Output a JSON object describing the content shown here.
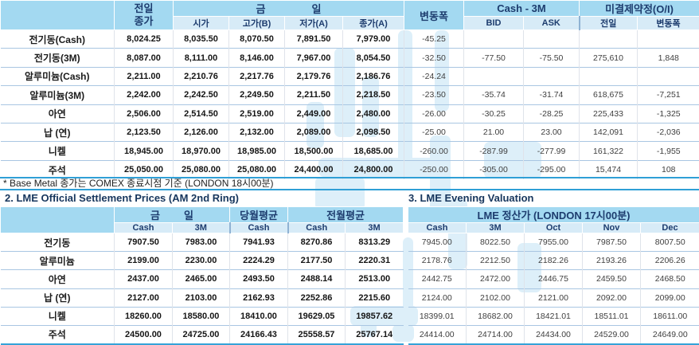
{
  "accent_colors": {
    "header_bright": "#a3d9f1",
    "header_light": "#d7ebf7",
    "line_blue": "#36a3d8",
    "title_navy": "#17365d"
  },
  "top_table": {
    "header": {
      "prev_close_line1": "전일",
      "prev_close_line2": "종가",
      "today_left": "금",
      "today_right": "일",
      "sub_cols": [
        "시가",
        "고가(B)",
        "저가(A)",
        "종가(A)"
      ],
      "change": "변동폭",
      "cash3m": "Cash - 3M",
      "cash3m_cols": [
        "BID",
        "ASK"
      ],
      "oi": "미결제약정(O/I)",
      "oi_cols": [
        "전일",
        "변동폭"
      ]
    },
    "rows": [
      {
        "label": "전기동(Cash)",
        "values": [
          "8,024.25",
          "8,035.50",
          "8,070.50",
          "7,891.50",
          "7,979.00",
          "-45.25",
          "",
          "",
          "",
          ""
        ]
      },
      {
        "label": "전기동(3M)",
        "values": [
          "8,087.00",
          "8,111.00",
          "8,146.00",
          "7,967.00",
          "8,054.50",
          "-32.50",
          "-77.50",
          "-75.50",
          "275,610",
          "1,848"
        ]
      },
      {
        "label": "알루미늄(Cash)",
        "values": [
          "2,211.00",
          "2,210.76",
          "2,217.76",
          "2,179.76",
          "2,186.76",
          "-24.24",
          "",
          "",
          "",
          ""
        ]
      },
      {
        "label": "알루미늄(3M)",
        "values": [
          "2,242.00",
          "2,242.50",
          "2,249.50",
          "2,211.50",
          "2,218.50",
          "-23.50",
          "-35.74",
          "-31.74",
          "618,675",
          "-7,251"
        ]
      },
      {
        "label": "아연",
        "values": [
          "2,506.00",
          "2,514.50",
          "2,519.00",
          "2,449.00",
          "2,480.00",
          "-26.00",
          "-30.25",
          "-28.25",
          "225,433",
          "-1,325"
        ]
      },
      {
        "label": "납 (연)",
        "values": [
          "2,123.50",
          "2,126.00",
          "2,132.00",
          "2,089.00",
          "2,098.50",
          "-25.00",
          "21.00",
          "23.00",
          "142,091",
          "-2,036"
        ]
      },
      {
        "label": "니켈",
        "values": [
          "18,945.00",
          "18,970.00",
          "18,985.00",
          "18,500.00",
          "18,685.00",
          "-260.00",
          "-287.99",
          "-277.99",
          "161,322",
          "-1,955"
        ]
      },
      {
        "label": "주석",
        "values": [
          "25,050.00",
          "25,080.00",
          "25,080.00",
          "24,400.00",
          "24,800.00",
          "-250.00",
          "-305.00",
          "-295.00",
          "15,474",
          "108"
        ]
      }
    ]
  },
  "footnote": "* Base Metal 종가는 COMEX 종료시점 기준 (LONDON 18시00분)",
  "section2": {
    "title": "2. LME Official Settlement Prices (AM 2nd Ring)",
    "group_today_left": "금",
    "group_today_right": "일",
    "group_month": "당월평균",
    "group_prev_month": "전월평균",
    "sub_headers": [
      "Cash",
      "3M",
      "Cash",
      "Cash",
      "3M"
    ],
    "rows": [
      {
        "label": "전기동",
        "values": [
          "7907.50",
          "7983.00",
          "7941.93",
          "8270.86",
          "8313.29"
        ]
      },
      {
        "label": "알루미늄",
        "values": [
          "2199.00",
          "2230.00",
          "2224.29",
          "2177.50",
          "2220.31"
        ]
      },
      {
        "label": "아연",
        "values": [
          "2437.00",
          "2465.00",
          "2493.50",
          "2488.14",
          "2513.00"
        ]
      },
      {
        "label": "납 (연)",
        "values": [
          "2127.00",
          "2103.00",
          "2162.93",
          "2252.86",
          "2215.60"
        ]
      },
      {
        "label": "니켈",
        "values": [
          "18260.00",
          "18580.00",
          "18410.00",
          "19629.05",
          "19857.62"
        ]
      },
      {
        "label": "주석",
        "values": [
          "24500.00",
          "24725.00",
          "24166.43",
          "25558.57",
          "25767.14"
        ]
      }
    ]
  },
  "section3": {
    "title": "3. LME Evening Valuation",
    "group_header": "LME 정산가 (LONDON 17시00분)",
    "sub_headers": [
      "Cash",
      "3M",
      "Oct",
      "Nov",
      "Dec"
    ],
    "rows": [
      {
        "values": [
          "7945.00",
          "8022.50",
          "7955.00",
          "7987.50",
          "8007.50"
        ]
      },
      {
        "values": [
          "2178.76",
          "2212.50",
          "2182.26",
          "2193.26",
          "2206.26"
        ]
      },
      {
        "values": [
          "2442.75",
          "2472.00",
          "2446.75",
          "2459.50",
          "2468.50"
        ]
      },
      {
        "values": [
          "2124.00",
          "2102.00",
          "2121.00",
          "2092.00",
          "2099.00"
        ]
      },
      {
        "values": [
          "18399.01",
          "18682.00",
          "18421.01",
          "18511.01",
          "18611.00"
        ]
      },
      {
        "values": [
          "24414.00",
          "24714.00",
          "24434.00",
          "24529.00",
          "24649.00"
        ]
      }
    ]
  }
}
